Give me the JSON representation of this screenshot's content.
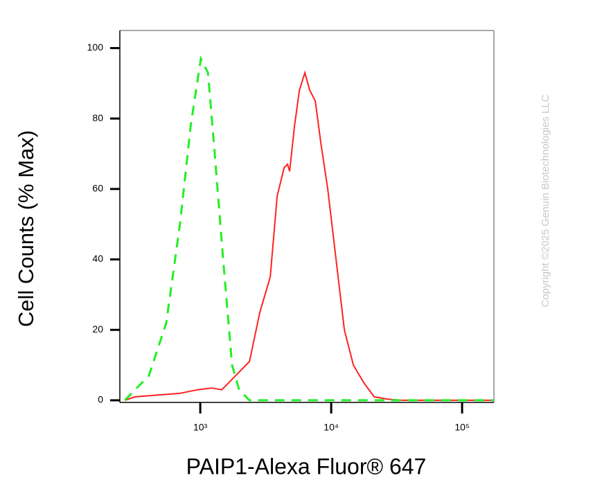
{
  "chart_data": {
    "type": "line",
    "xlabel": "PAIP1-Alexa Fluor® 647",
    "ylabel": "Cell Counts (% Max)",
    "watermark": "Copyright ©2025 Genuin Biotechnologies LLC",
    "xscale": "log",
    "xlim": [
      243,
      175000
    ],
    "ylim": [
      -0.6,
      105
    ],
    "xticks": [
      {
        "value": 1000,
        "label": "10³"
      },
      {
        "value": 10000,
        "label": "10⁴"
      },
      {
        "value": 100000,
        "label": "10⁵"
      }
    ],
    "yticks": [
      0,
      20,
      40,
      60,
      80,
      100
    ],
    "series": [
      {
        "color": "#ff2020",
        "style": "solid",
        "x": [
          265,
          318,
          703,
          953,
          1216,
          1459,
          1862,
          2375,
          2852,
          3422,
          3866,
          4366,
          4643,
          4816,
          5248,
          5715,
          6297,
          6857,
          7554,
          8337,
          9414,
          10890,
          12610,
          14770,
          17740,
          21290,
          27150,
          34650,
          175000
        ],
        "values": [
          0,
          1,
          2,
          3,
          3.5,
          3,
          7,
          11,
          25,
          35,
          58,
          66,
          67,
          65,
          78,
          88,
          93,
          88,
          85,
          73,
          60,
          40,
          20,
          10,
          5,
          1,
          0.3,
          0,
          0
        ]
      },
      {
        "color": "#22ee22",
        "style": "dashed",
        "x": [
          265,
          405,
          550,
          700,
          845,
          1010,
          1145,
          1290,
          1495,
          1750,
          1980,
          2375,
          10000,
          175000
        ],
        "values": [
          0,
          7,
          22,
          50,
          78,
          97,
          93,
          70,
          40,
          10,
          3,
          0,
          0,
          0
        ]
      }
    ]
  }
}
